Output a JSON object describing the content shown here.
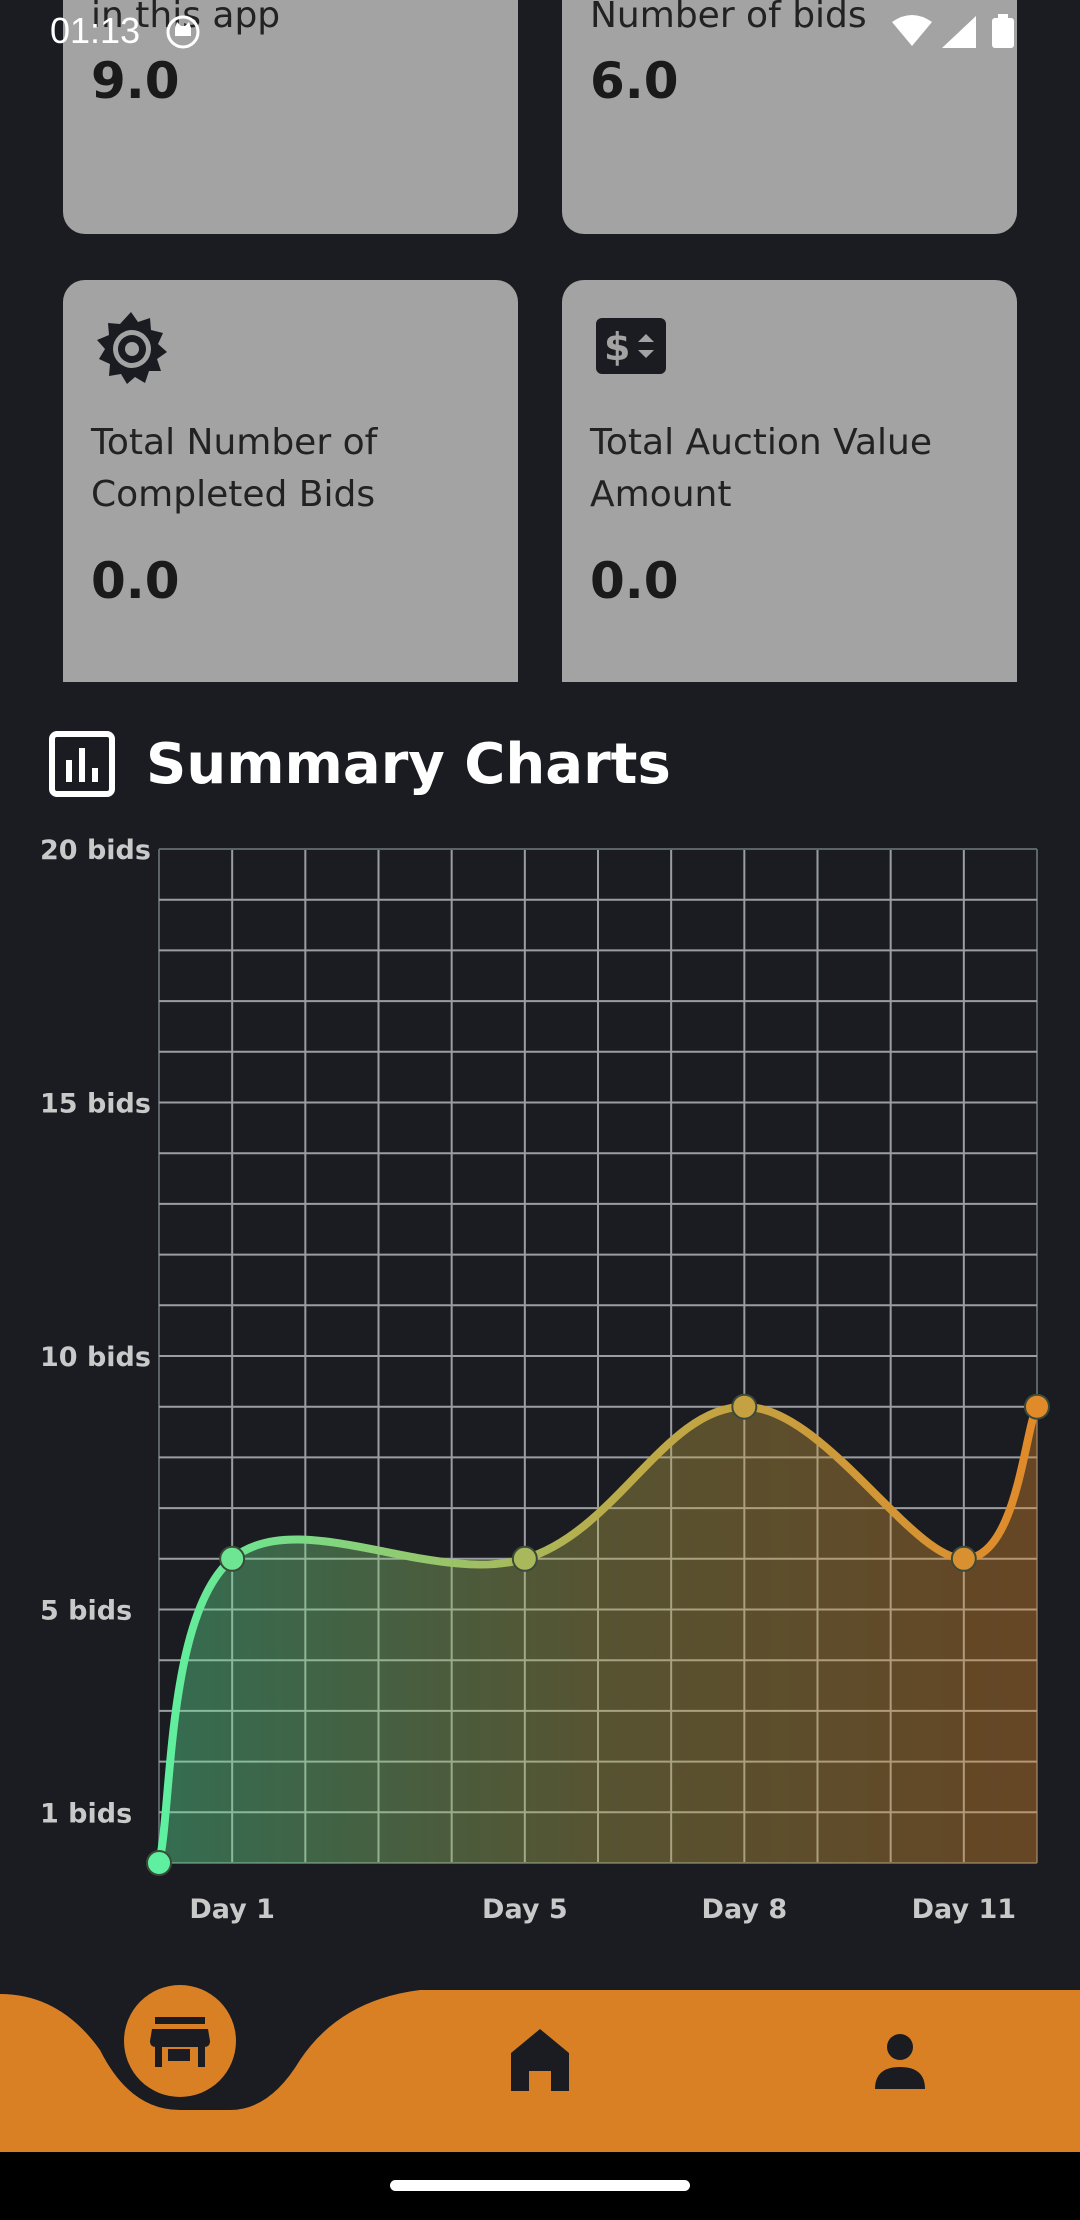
{
  "status_bar": {
    "time": "01:13",
    "icons": [
      "cat-notification-icon",
      "wifi-icon",
      "signal-icon",
      "battery-icon"
    ]
  },
  "cards": [
    {
      "label": "in this app",
      "value": "9.0"
    },
    {
      "label": "Number of bids",
      "value": "6.0"
    },
    {
      "icon": "sun-gear-icon",
      "label_line1": "Total Number of",
      "label_line2": "Completed Bids",
      "value": "0.0"
    },
    {
      "icon": "dollar-sort-icon",
      "label_line1": "Total Auction Value",
      "label_line2": "Amount",
      "value": "0.0"
    }
  ],
  "section": {
    "title": "Summary Charts",
    "icon": "bar-chart-icon"
  },
  "chart_data": {
    "type": "area",
    "title": "",
    "xlabel": "",
    "ylabel": "",
    "x_ticks": [
      "Day 1",
      "Day 5",
      "Day 8",
      "Day 11"
    ],
    "y_ticks": [
      {
        "value": 1,
        "label": "1 bids"
      },
      {
        "value": 5,
        "label": "5 bids"
      },
      {
        "value": 10,
        "label": "10 bids"
      },
      {
        "value": 15,
        "label": "15 bids"
      },
      {
        "value": 20,
        "label": "20 bids"
      }
    ],
    "xlim": [
      -1,
      11
    ],
    "ylim": [
      0,
      20
    ],
    "grid": true,
    "series": [
      {
        "x": [
          -1,
          0,
          4,
          7,
          10,
          11
        ],
        "values": [
          0,
          6,
          6,
          9,
          6,
          9
        ]
      }
    ],
    "gradient_colors": [
      "#5ef0a0",
      "#b8ad4c",
      "#e08a2a"
    ]
  },
  "bottom_nav": {
    "items": [
      {
        "icon": "store-icon",
        "active": true
      },
      {
        "icon": "home-icon",
        "active": false
      },
      {
        "icon": "person-icon",
        "active": false
      }
    ],
    "bar_color": "#d98025",
    "active_circle_color": "#d98025",
    "icon_color": "#1b1c21"
  }
}
